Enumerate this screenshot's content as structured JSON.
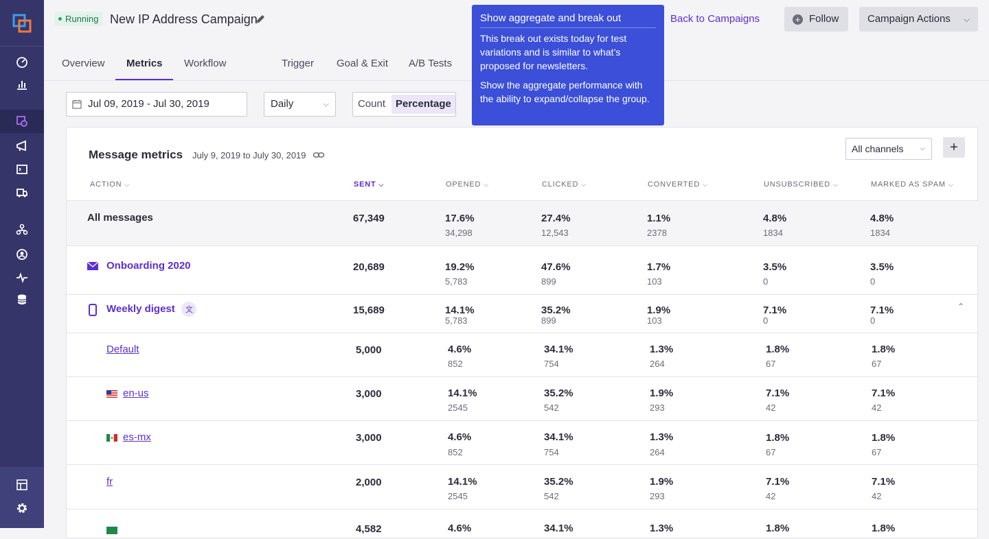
{
  "header": {
    "status": "Running",
    "title": "New IP Address Campaign",
    "back_link": "Back to Campaigns",
    "follow": "Follow",
    "campaign_actions": "Campaign Actions"
  },
  "tooltip": {
    "title": "Show aggregate and break out",
    "body1": "This break out exists today for test variations and is similar to what’s proposed for newsletters.",
    "body2": "Show the aggregate performance with the ability to expand/collapse the group."
  },
  "tabs": [
    "Overview",
    "Metrics",
    "Workflow",
    "Trigger",
    "Goal & Exit",
    "A/B Tests"
  ],
  "filters": {
    "date_range": "Jul 09, 2019 - Jul 30, 2019",
    "period": "Daily",
    "toggle_count": "Count",
    "toggle_percentage": "Percentage"
  },
  "card": {
    "title": "Message metrics",
    "subtitle": "July 9, 2019 to July 30, 2019",
    "channel": "All channels",
    "add": "+"
  },
  "columns": [
    "ACTION",
    "SENT",
    "OPENED",
    "CLICKED",
    "CONVERTED",
    "UNSUBSCRIBED",
    "MARKED AS SPAM"
  ],
  "rows": [
    {
      "name": "All messages",
      "sent": "67,349",
      "opened": [
        "17.6%",
        "34,298"
      ],
      "clicked": [
        "27.4%",
        "12,543"
      ],
      "converted": [
        "1.1%",
        "2378"
      ],
      "unsub": [
        "4.8%",
        "1834"
      ],
      "spam": [
        "4.8%",
        "1834"
      ]
    },
    {
      "name": "Onboarding 2020",
      "sent": "20,689",
      "opened": [
        "19.2%",
        "5,783"
      ],
      "clicked": [
        "47.6%",
        "899"
      ],
      "converted": [
        "1.7%",
        "103"
      ],
      "unsub": [
        "3.5%",
        "0"
      ],
      "spam": [
        "3.5%",
        "0"
      ]
    },
    {
      "name": "Weekly digest",
      "sent": "15,689",
      "opened": [
        "14.1%",
        "5,783"
      ],
      "clicked": [
        "35.2%",
        "899"
      ],
      "converted": [
        "1.9%",
        "103"
      ],
      "unsub": [
        "7.1%",
        "0"
      ],
      "spam": [
        "7.1%",
        "0"
      ]
    },
    {
      "name": "Default",
      "sent": "5,000",
      "opened": [
        "4.6%",
        "852"
      ],
      "clicked": [
        "34.1%",
        "754"
      ],
      "converted": [
        "1.3%",
        "264"
      ],
      "unsub": [
        "1.8%",
        "67"
      ],
      "spam": [
        "1.8%",
        "67"
      ]
    },
    {
      "name": "en-us",
      "sent": "3,000",
      "opened": [
        "14.1%",
        "2545"
      ],
      "clicked": [
        "35.2%",
        "542"
      ],
      "converted": [
        "1.9%",
        "293"
      ],
      "unsub": [
        "7.1%",
        "42"
      ],
      "spam": [
        "7.1%",
        "42"
      ]
    },
    {
      "name": "es-mx",
      "sent": "3,000",
      "opened": [
        "4.6%",
        "852"
      ],
      "clicked": [
        "34.1%",
        "754"
      ],
      "converted": [
        "1.3%",
        "264"
      ],
      "unsub": [
        "1.8%",
        "67"
      ],
      "spam": [
        "1.8%",
        "67"
      ]
    },
    {
      "name": "fr",
      "sent": "2,000",
      "opened": [
        "14.1%",
        "2545"
      ],
      "clicked": [
        "35.2%",
        "542"
      ],
      "converted": [
        "1.9%",
        "293"
      ],
      "unsub": [
        "7.1%",
        "42"
      ],
      "spam": [
        "7.1%",
        "42"
      ]
    },
    {
      "name": "",
      "sent": "4,582",
      "opened": [
        "4.6%",
        ""
      ],
      "clicked": [
        "34.1%",
        ""
      ],
      "converted": [
        "1.3%",
        ""
      ],
      "unsub": [
        "1.8%",
        ""
      ],
      "spam": [
        "1.8%",
        ""
      ]
    }
  ],
  "colors": {
    "sidebar": "#35356a",
    "accent": "#5b2fd0",
    "tooltip": "#3b4fd8",
    "running": "#25a36a"
  }
}
